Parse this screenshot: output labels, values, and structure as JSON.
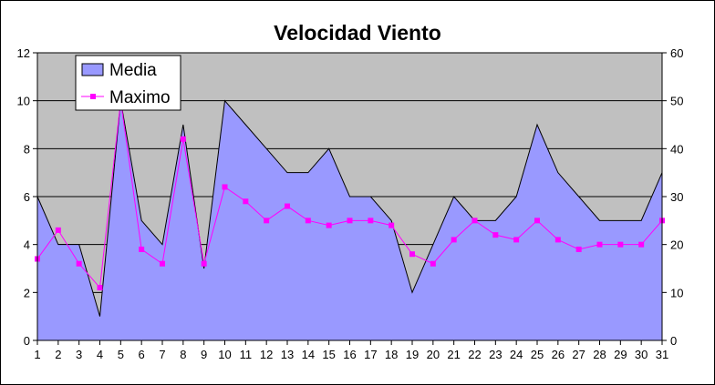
{
  "chart_data": {
    "type": "area",
    "title": "Velocidad Viento",
    "categories": [
      "1",
      "2",
      "3",
      "4",
      "5",
      "6",
      "7",
      "8",
      "9",
      "10",
      "11",
      "12",
      "13",
      "14",
      "15",
      "16",
      "17",
      "18",
      "19",
      "20",
      "21",
      "22",
      "23",
      "24",
      "25",
      "26",
      "27",
      "28",
      "29",
      "30",
      "31"
    ],
    "series": [
      {
        "name": "Media",
        "type": "area",
        "axis": "left",
        "color": "#9999ff",
        "values": [
          6,
          4,
          4,
          1,
          10,
          5,
          4,
          9,
          3,
          10,
          9,
          8,
          7,
          7,
          8,
          6,
          6,
          5,
          2,
          4,
          6,
          5,
          5,
          6,
          9,
          7,
          6,
          5,
          5,
          5,
          7
        ]
      },
      {
        "name": "Maximo",
        "type": "line",
        "axis": "right",
        "color": "#ff00ff",
        "values": [
          17,
          23,
          16,
          11,
          50,
          19,
          16,
          42,
          16,
          32,
          29,
          25,
          28,
          25,
          24,
          25,
          25,
          24,
          18,
          16,
          21,
          25,
          22,
          21,
          25,
          21,
          19,
          20,
          20,
          20,
          25
        ]
      }
    ],
    "yleft": {
      "min": 0,
      "max": 12,
      "ticks": [
        "0",
        "2",
        "4",
        "6",
        "8",
        "10",
        "12"
      ]
    },
    "yright": {
      "min": 0,
      "max": 60,
      "ticks": [
        "0",
        "10",
        "20",
        "30",
        "40",
        "50",
        "60"
      ]
    },
    "plot_background": "#c0c0c0",
    "grid": true,
    "legend_position": "top-left"
  }
}
